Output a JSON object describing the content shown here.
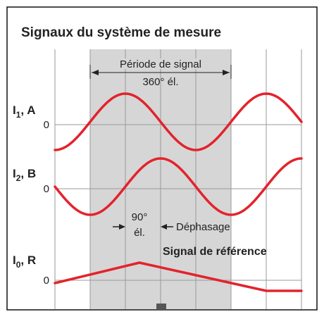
{
  "title": "Signaux du système de mesure",
  "period": {
    "line1": "Période de signal",
    "line2": "360° él."
  },
  "phase": {
    "line1": "90°",
    "line2": "él.",
    "label": "Déphasage"
  },
  "signals": [
    {
      "letter": "I",
      "subscript": "1",
      "suffix": ", A",
      "zero": "0"
    },
    {
      "letter": "I",
      "subscript": "2",
      "suffix": ", B",
      "zero": "0"
    },
    {
      "letter": "I",
      "subscript": "0",
      "suffix": ", R",
      "zero": "0"
    }
  ],
  "reference_label": "Signal de référence"
}
